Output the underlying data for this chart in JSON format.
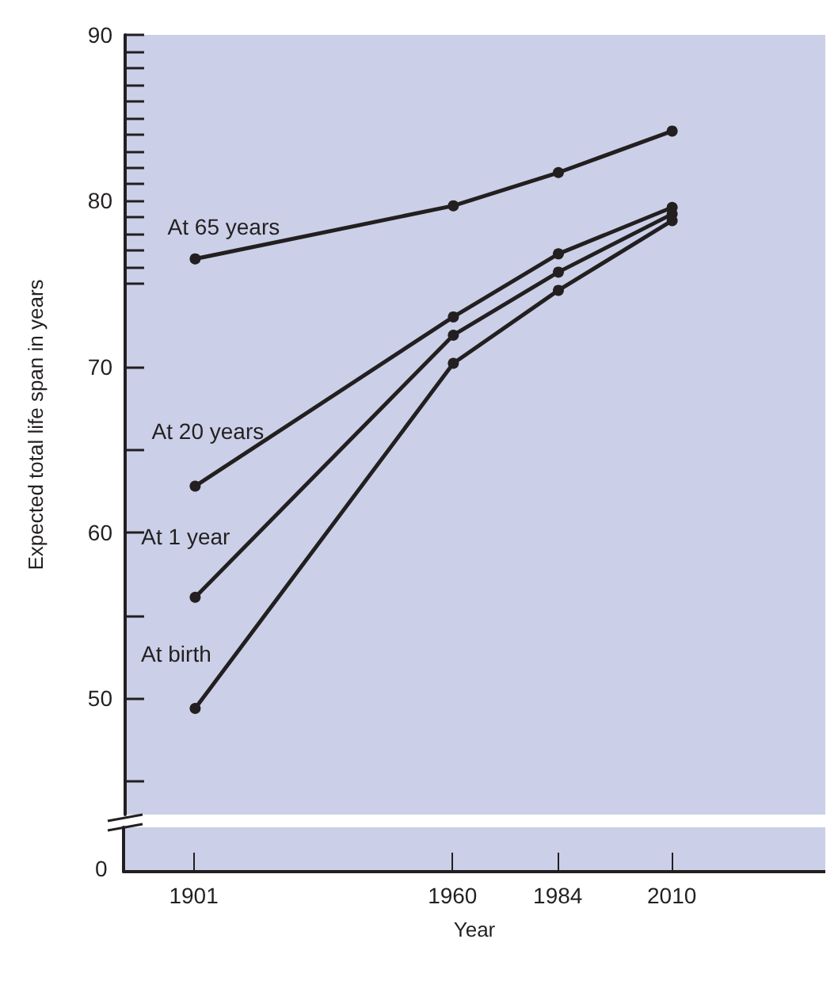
{
  "chart_data": {
    "type": "line",
    "xlabel": "Year",
    "ylabel": "Expected total life span in years",
    "x": [
      1901,
      1960,
      1984,
      2010
    ],
    "series": [
      {
        "name": "At 65 years",
        "color": "#231f20",
        "values": [
          76.5,
          79.7,
          81.7,
          84.2
        ]
      },
      {
        "name": "At 20 years",
        "color": "#231f20",
        "values": [
          62.8,
          73.0,
          76.8,
          79.6
        ]
      },
      {
        "name": "At 1 year",
        "color": "#231f20",
        "values": [
          56.1,
          71.9,
          75.7,
          79.2
        ]
      },
      {
        "name": "At birth",
        "color": "#231f20",
        "values": [
          49.4,
          70.2,
          74.6,
          78.8
        ]
      }
    ],
    "xlim": [
      1885,
      2045
    ],
    "xticks": [
      1901,
      1960,
      1984,
      2010
    ],
    "ylim": [
      43,
      90
    ],
    "yticks": [
      {
        "value": 45,
        "label": null
      },
      50,
      {
        "value": 55,
        "label": null
      },
      60,
      {
        "value": 65,
        "label": null
      },
      70,
      {
        "value": 75,
        "label": null
      },
      {
        "value": 76,
        "label": null
      },
      {
        "value": 77,
        "label": null
      },
      {
        "value": 78,
        "label": null
      },
      {
        "value": 79,
        "label": null
      },
      80,
      {
        "value": 81,
        "label": null
      },
      {
        "value": 82,
        "label": null
      },
      {
        "value": 83,
        "label": null
      },
      {
        "value": 84,
        "label": null
      },
      {
        "value": 85,
        "label": null
      },
      {
        "value": 86,
        "label": null
      },
      {
        "value": 87,
        "label": null
      },
      {
        "value": 88,
        "label": null
      },
      {
        "value": 89,
        "label": null
      },
      90
    ],
    "annotations": [
      "0"
    ],
    "grid": false,
    "legend": false,
    "marker": "circle",
    "line_style": "solid"
  }
}
